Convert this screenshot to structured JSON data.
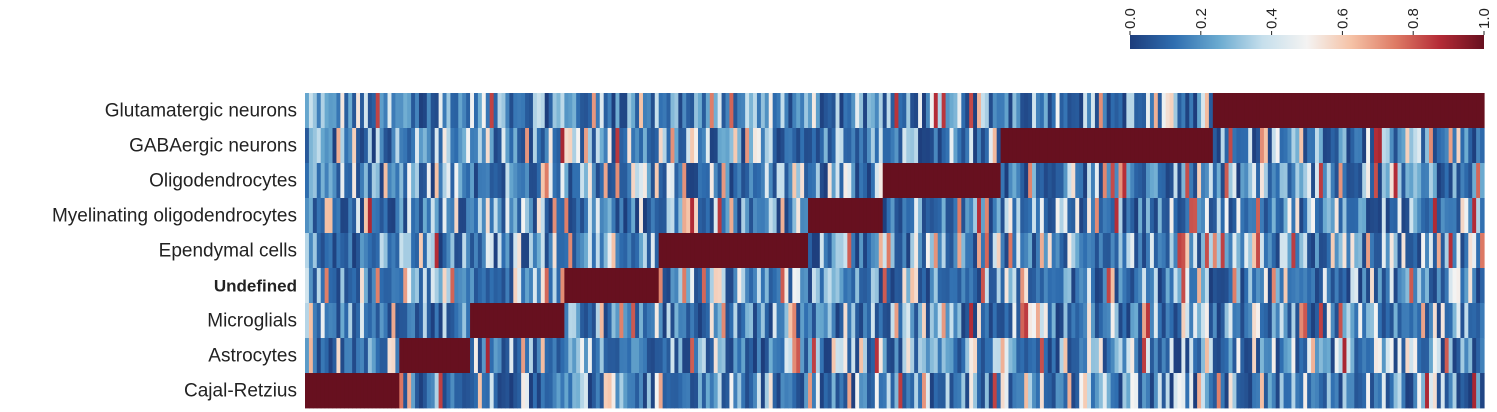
{
  "chart_data": {
    "type": "heatmap",
    "title": "",
    "rows": [
      "Glutamatergic neurons",
      "GABAergic neurons",
      "Oligodendrocytes",
      "Myelinating oligodendrocytes",
      "Ependymal cells",
      "Undefined",
      "Microglials",
      "Astrocytes",
      "Cajal-Retzius"
    ],
    "highlighted_row": "Undefined",
    "columns_note": "",
    "n_columns": 300,
    "high_value_blocks": [
      {
        "row": "Cajal-Retzius",
        "col_start": 0,
        "col_end": 24,
        "value": 1.0
      },
      {
        "row": "Astrocytes",
        "col_start": 24,
        "col_end": 42,
        "value": 1.0
      },
      {
        "row": "Microglials",
        "col_start": 42,
        "col_end": 66,
        "value": 1.0
      },
      {
        "row": "Undefined",
        "col_start": 66,
        "col_end": 90,
        "value": 1.0
      },
      {
        "row": "Ependymal cells",
        "col_start": 90,
        "col_end": 128,
        "value": 1.0
      },
      {
        "row": "Myelinating oligodendrocytes",
        "col_start": 128,
        "col_end": 147,
        "value": 1.0
      },
      {
        "row": "Oligodendrocytes",
        "col_start": 147,
        "col_end": 177,
        "value": 1.0
      },
      {
        "row": "GABAergic neurons",
        "col_start": 177,
        "col_end": 231,
        "value": 1.0
      },
      {
        "row": "Glutamatergic neurons",
        "col_start": 231,
        "col_end": 300,
        "value": 1.0
      }
    ],
    "background_value_range": [
      0.0,
      0.85
    ],
    "colorbar": {
      "min": 0.0,
      "max": 1.0,
      "ticks": [
        "0.0",
        "0.2",
        "0.4",
        "0.6",
        "0.8",
        "1.0"
      ],
      "colormap": "RdBu_r",
      "color_stops": [
        "#1d3d7c",
        "#2f6eb0",
        "#6aaad0",
        "#c6dfec",
        "#f4f3f2",
        "#f5c2a6",
        "#de7b65",
        "#b42b36",
        "#67101f"
      ]
    }
  }
}
